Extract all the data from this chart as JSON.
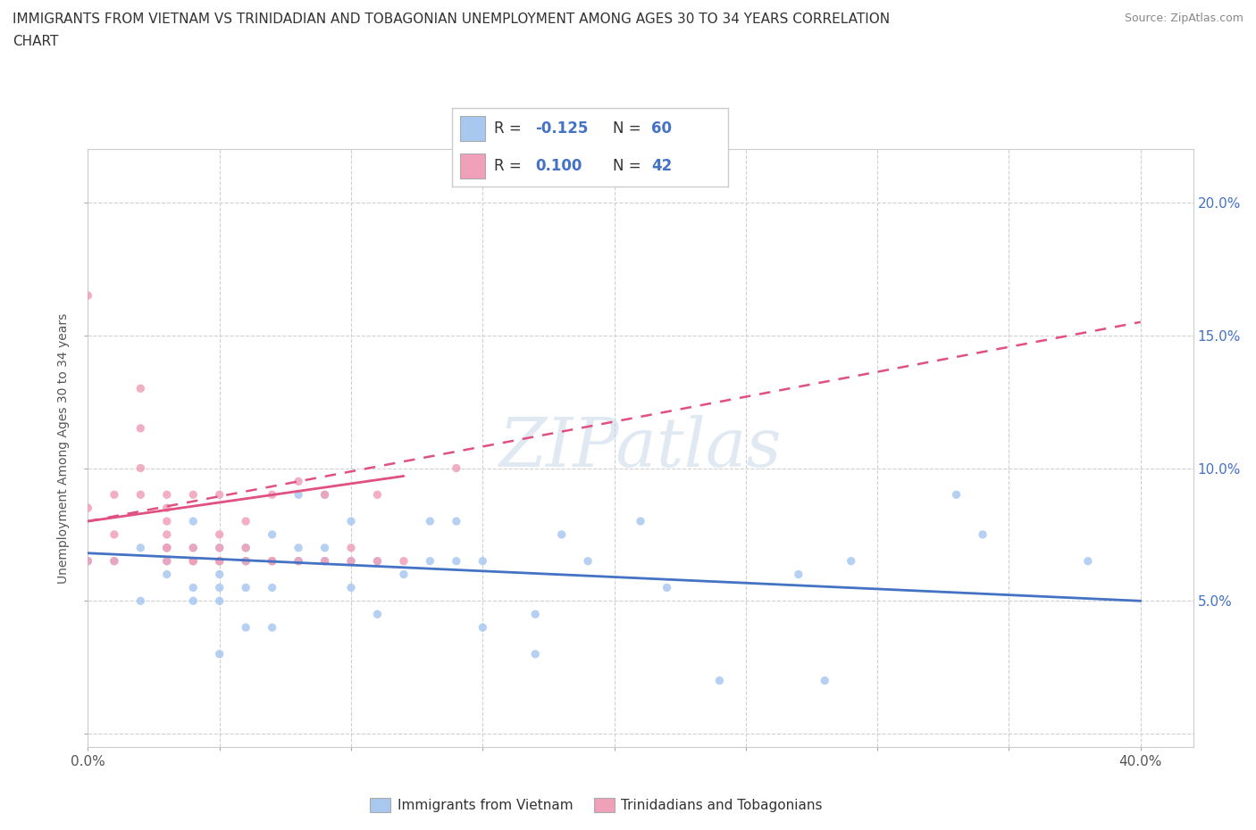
{
  "title_line1": "IMMIGRANTS FROM VIETNAM VS TRINIDADIAN AND TOBAGONIAN UNEMPLOYMENT AMONG AGES 30 TO 34 YEARS CORRELATION",
  "title_line2": "CHART",
  "source_text": "Source: ZipAtlas.com",
  "ylabel": "Unemployment Among Ages 30 to 34 years",
  "xlim": [
    0.0,
    0.42
  ],
  "ylim": [
    -0.005,
    0.22
  ],
  "x_ticks": [
    0.0,
    0.05,
    0.1,
    0.15,
    0.2,
    0.25,
    0.3,
    0.35,
    0.4
  ],
  "y_ticks": [
    0.0,
    0.05,
    0.1,
    0.15,
    0.2
  ],
  "grid_color": "#d0d0d0",
  "blue_color": "#a8c8f0",
  "pink_color": "#f0a0b8",
  "blue_line_color": "#4472c4",
  "pink_line_color": "#e05080",
  "tick_label_color": "#4472c4",
  "R_blue": -0.125,
  "N_blue": 60,
  "R_pink": 0.1,
  "N_pink": 42,
  "blue_scatter_x": [
    0.0,
    0.01,
    0.02,
    0.02,
    0.03,
    0.03,
    0.03,
    0.04,
    0.04,
    0.04,
    0.04,
    0.04,
    0.05,
    0.05,
    0.05,
    0.05,
    0.05,
    0.05,
    0.06,
    0.06,
    0.06,
    0.06,
    0.06,
    0.07,
    0.07,
    0.07,
    0.07,
    0.08,
    0.08,
    0.08,
    0.08,
    0.09,
    0.09,
    0.09,
    0.09,
    0.1,
    0.1,
    0.1,
    0.11,
    0.11,
    0.12,
    0.13,
    0.13,
    0.14,
    0.14,
    0.15,
    0.15,
    0.17,
    0.17,
    0.18,
    0.19,
    0.21,
    0.22,
    0.24,
    0.27,
    0.28,
    0.29,
    0.33,
    0.34,
    0.38
  ],
  "blue_scatter_y": [
    0.065,
    0.065,
    0.05,
    0.07,
    0.06,
    0.065,
    0.07,
    0.05,
    0.055,
    0.065,
    0.07,
    0.08,
    0.03,
    0.05,
    0.06,
    0.065,
    0.07,
    0.055,
    0.04,
    0.055,
    0.065,
    0.065,
    0.07,
    0.04,
    0.055,
    0.065,
    0.075,
    0.065,
    0.065,
    0.07,
    0.09,
    0.065,
    0.065,
    0.07,
    0.09,
    0.055,
    0.065,
    0.08,
    0.045,
    0.065,
    0.06,
    0.065,
    0.08,
    0.065,
    0.08,
    0.04,
    0.065,
    0.03,
    0.045,
    0.075,
    0.065,
    0.08,
    0.055,
    0.02,
    0.06,
    0.02,
    0.065,
    0.09,
    0.075,
    0.065
  ],
  "pink_scatter_x": [
    0.0,
    0.0,
    0.0,
    0.01,
    0.01,
    0.01,
    0.02,
    0.02,
    0.02,
    0.02,
    0.03,
    0.03,
    0.03,
    0.03,
    0.03,
    0.03,
    0.03,
    0.04,
    0.04,
    0.04,
    0.04,
    0.05,
    0.05,
    0.05,
    0.05,
    0.05,
    0.06,
    0.06,
    0.06,
    0.07,
    0.07,
    0.07,
    0.08,
    0.08,
    0.09,
    0.09,
    0.1,
    0.1,
    0.11,
    0.11,
    0.12,
    0.14
  ],
  "pink_scatter_y": [
    0.065,
    0.085,
    0.165,
    0.065,
    0.075,
    0.09,
    0.09,
    0.1,
    0.115,
    0.13,
    0.065,
    0.07,
    0.07,
    0.075,
    0.08,
    0.085,
    0.09,
    0.065,
    0.065,
    0.07,
    0.09,
    0.065,
    0.065,
    0.07,
    0.075,
    0.09,
    0.065,
    0.07,
    0.08,
    0.065,
    0.065,
    0.09,
    0.065,
    0.095,
    0.065,
    0.09,
    0.065,
    0.07,
    0.065,
    0.09,
    0.065,
    0.1
  ],
  "blue_trend_x": [
    0.0,
    0.4
  ],
  "blue_trend_y": [
    0.068,
    0.05
  ],
  "pink_trend_x": [
    0.0,
    0.4
  ],
  "pink_trend_y": [
    0.08,
    0.155
  ]
}
